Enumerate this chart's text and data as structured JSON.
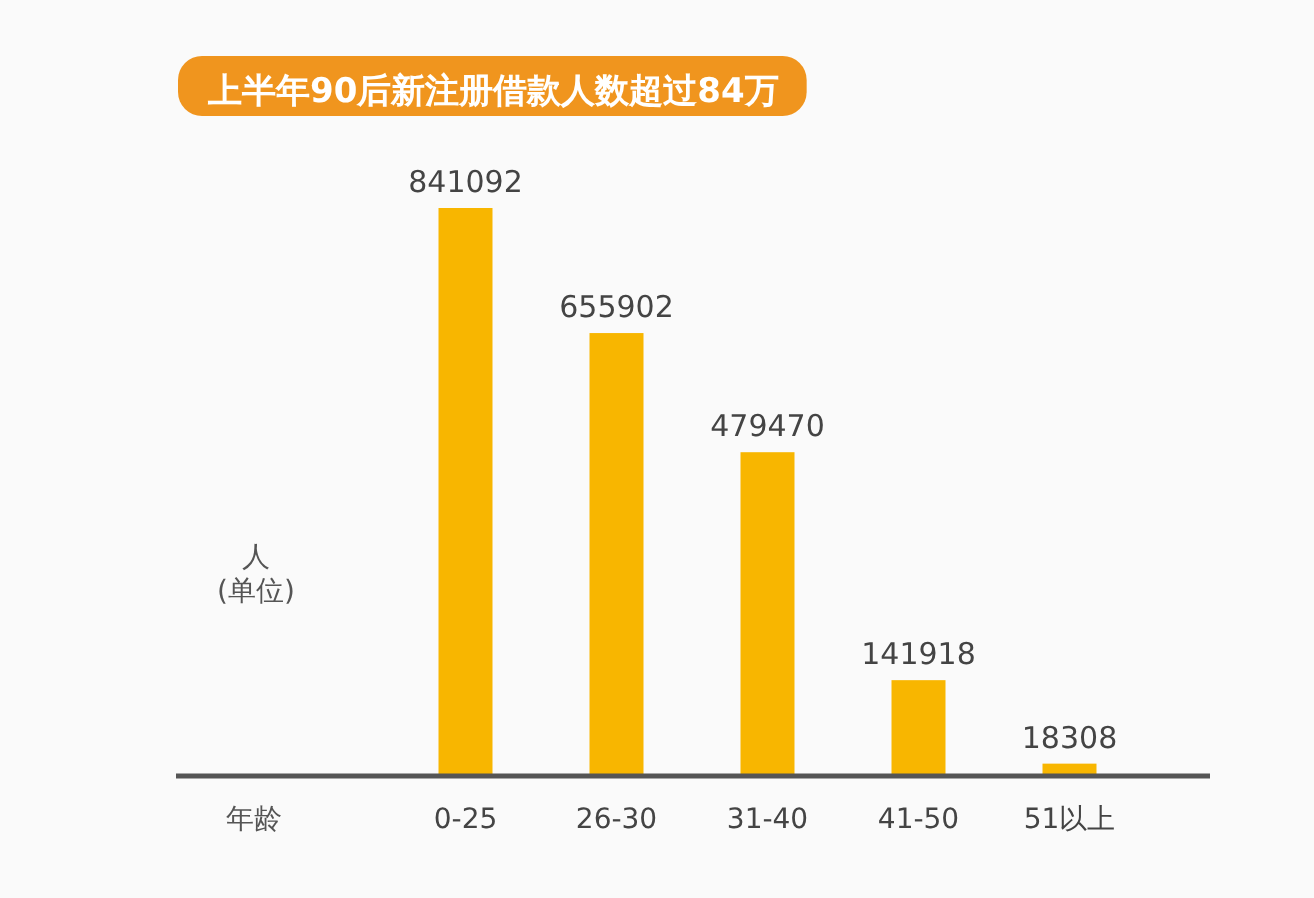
{
  "chart_data": {
    "type": "bar",
    "title": "上半年90后新注册借款人数超过84万",
    "ylabel": "人\n(单位)",
    "xlabel": "年龄",
    "categories": [
      "0-25",
      "26-30",
      "31-40",
      "41-50",
      "51以上"
    ],
    "values": [
      841092,
      655902,
      479470,
      141918,
      18308
    ],
    "color": "#f8b600",
    "data_labels": true
  }
}
